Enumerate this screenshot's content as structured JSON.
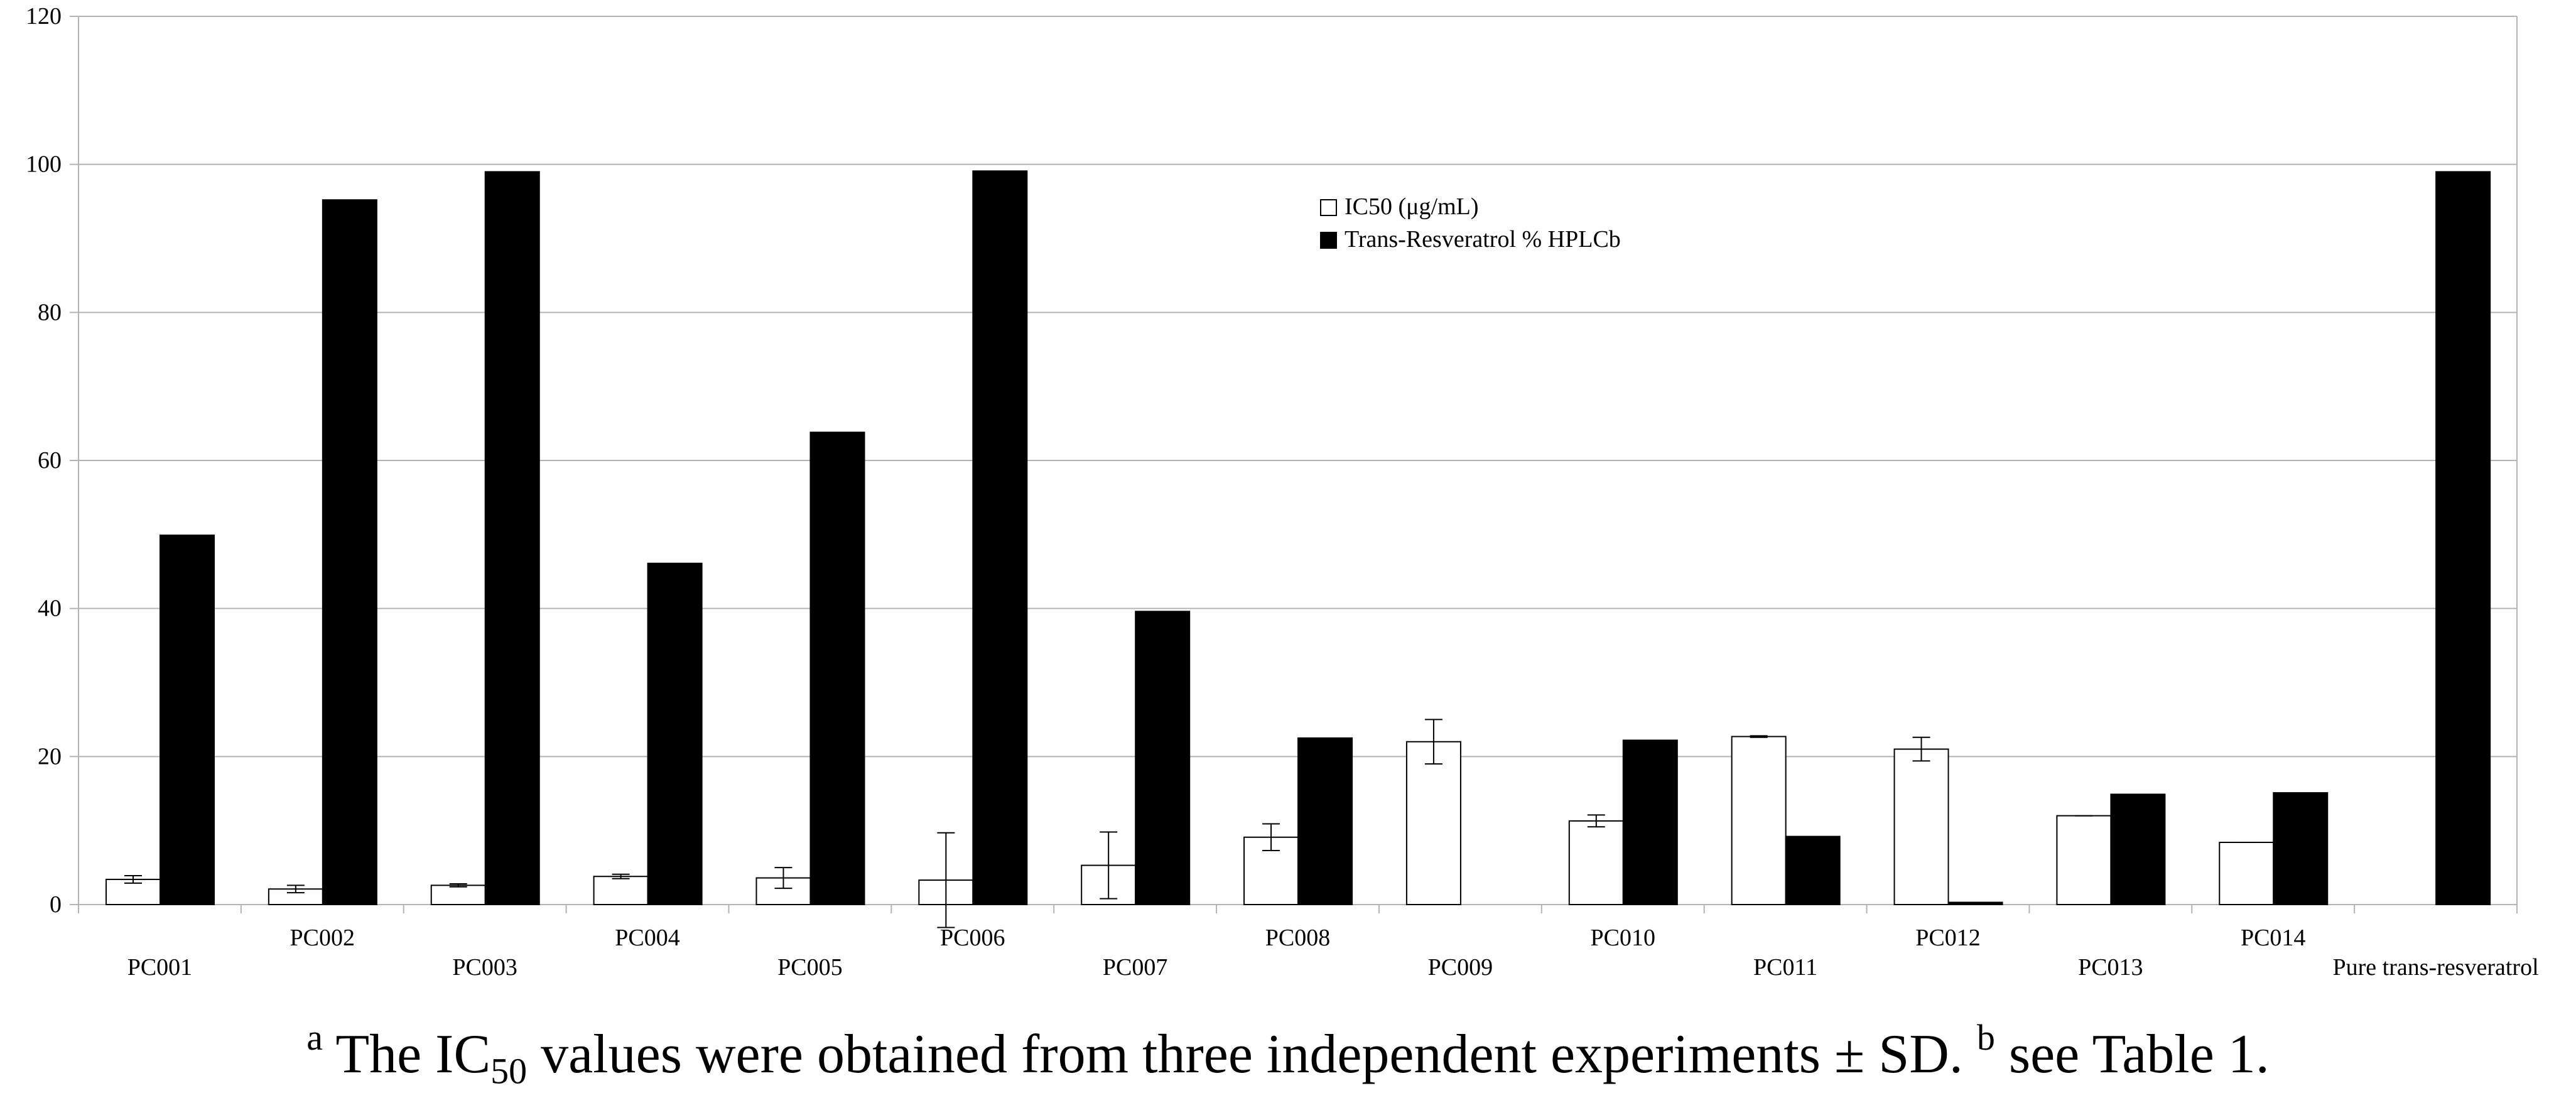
{
  "chart_data": {
    "type": "bar",
    "categories": [
      "PC001",
      "PC002",
      "PC003",
      "PC004",
      "PC005",
      "PC006",
      "PC007",
      "PC008",
      "PC009",
      "PC010",
      "PC011",
      "PC012",
      "PC013",
      "PC014",
      "Pure trans-resveratrol"
    ],
    "series": [
      {
        "name": "IC50 (μg/mL)",
        "color": "#ffffff",
        "values": [
          3.4,
          2.1,
          2.6,
          3.8,
          3.6,
          3.3,
          5.3,
          9.1,
          22.0,
          11.3,
          22.7,
          21.0,
          12.0,
          8.4,
          null
        ],
        "error": [
          0.5,
          0.5,
          0.2,
          0.3,
          1.4,
          6.4,
          4.5,
          1.8,
          3.0,
          0.8,
          0.1,
          1.6,
          0.0,
          0.0,
          null
        ]
      },
      {
        "name": "Trans-Resveratrol % HPLCb",
        "color": "#000000",
        "values": [
          49.9,
          95.2,
          99.0,
          46.1,
          63.8,
          99.1,
          39.6,
          22.5,
          0,
          22.2,
          9.2,
          0.3,
          14.9,
          15.1,
          99.0
        ]
      }
    ],
    "ylim": [
      0,
      120
    ],
    "yticks": [
      "0",
      "20",
      "40",
      "60",
      "80",
      "100",
      "120"
    ],
    "grid": true,
    "legend_position": "top-center"
  },
  "legend": {
    "ic50_label": "IC50 (μg/mL)",
    "hplc_label": "Trans-Resveratrol % HPLCb"
  },
  "caption": {
    "sup_a": "a",
    "part1": " The IC",
    "sub": "50",
    "part2": " values were obtained from three independent experiments ± SD. ",
    "sup_b": "b",
    "part3": " see Table 1."
  }
}
